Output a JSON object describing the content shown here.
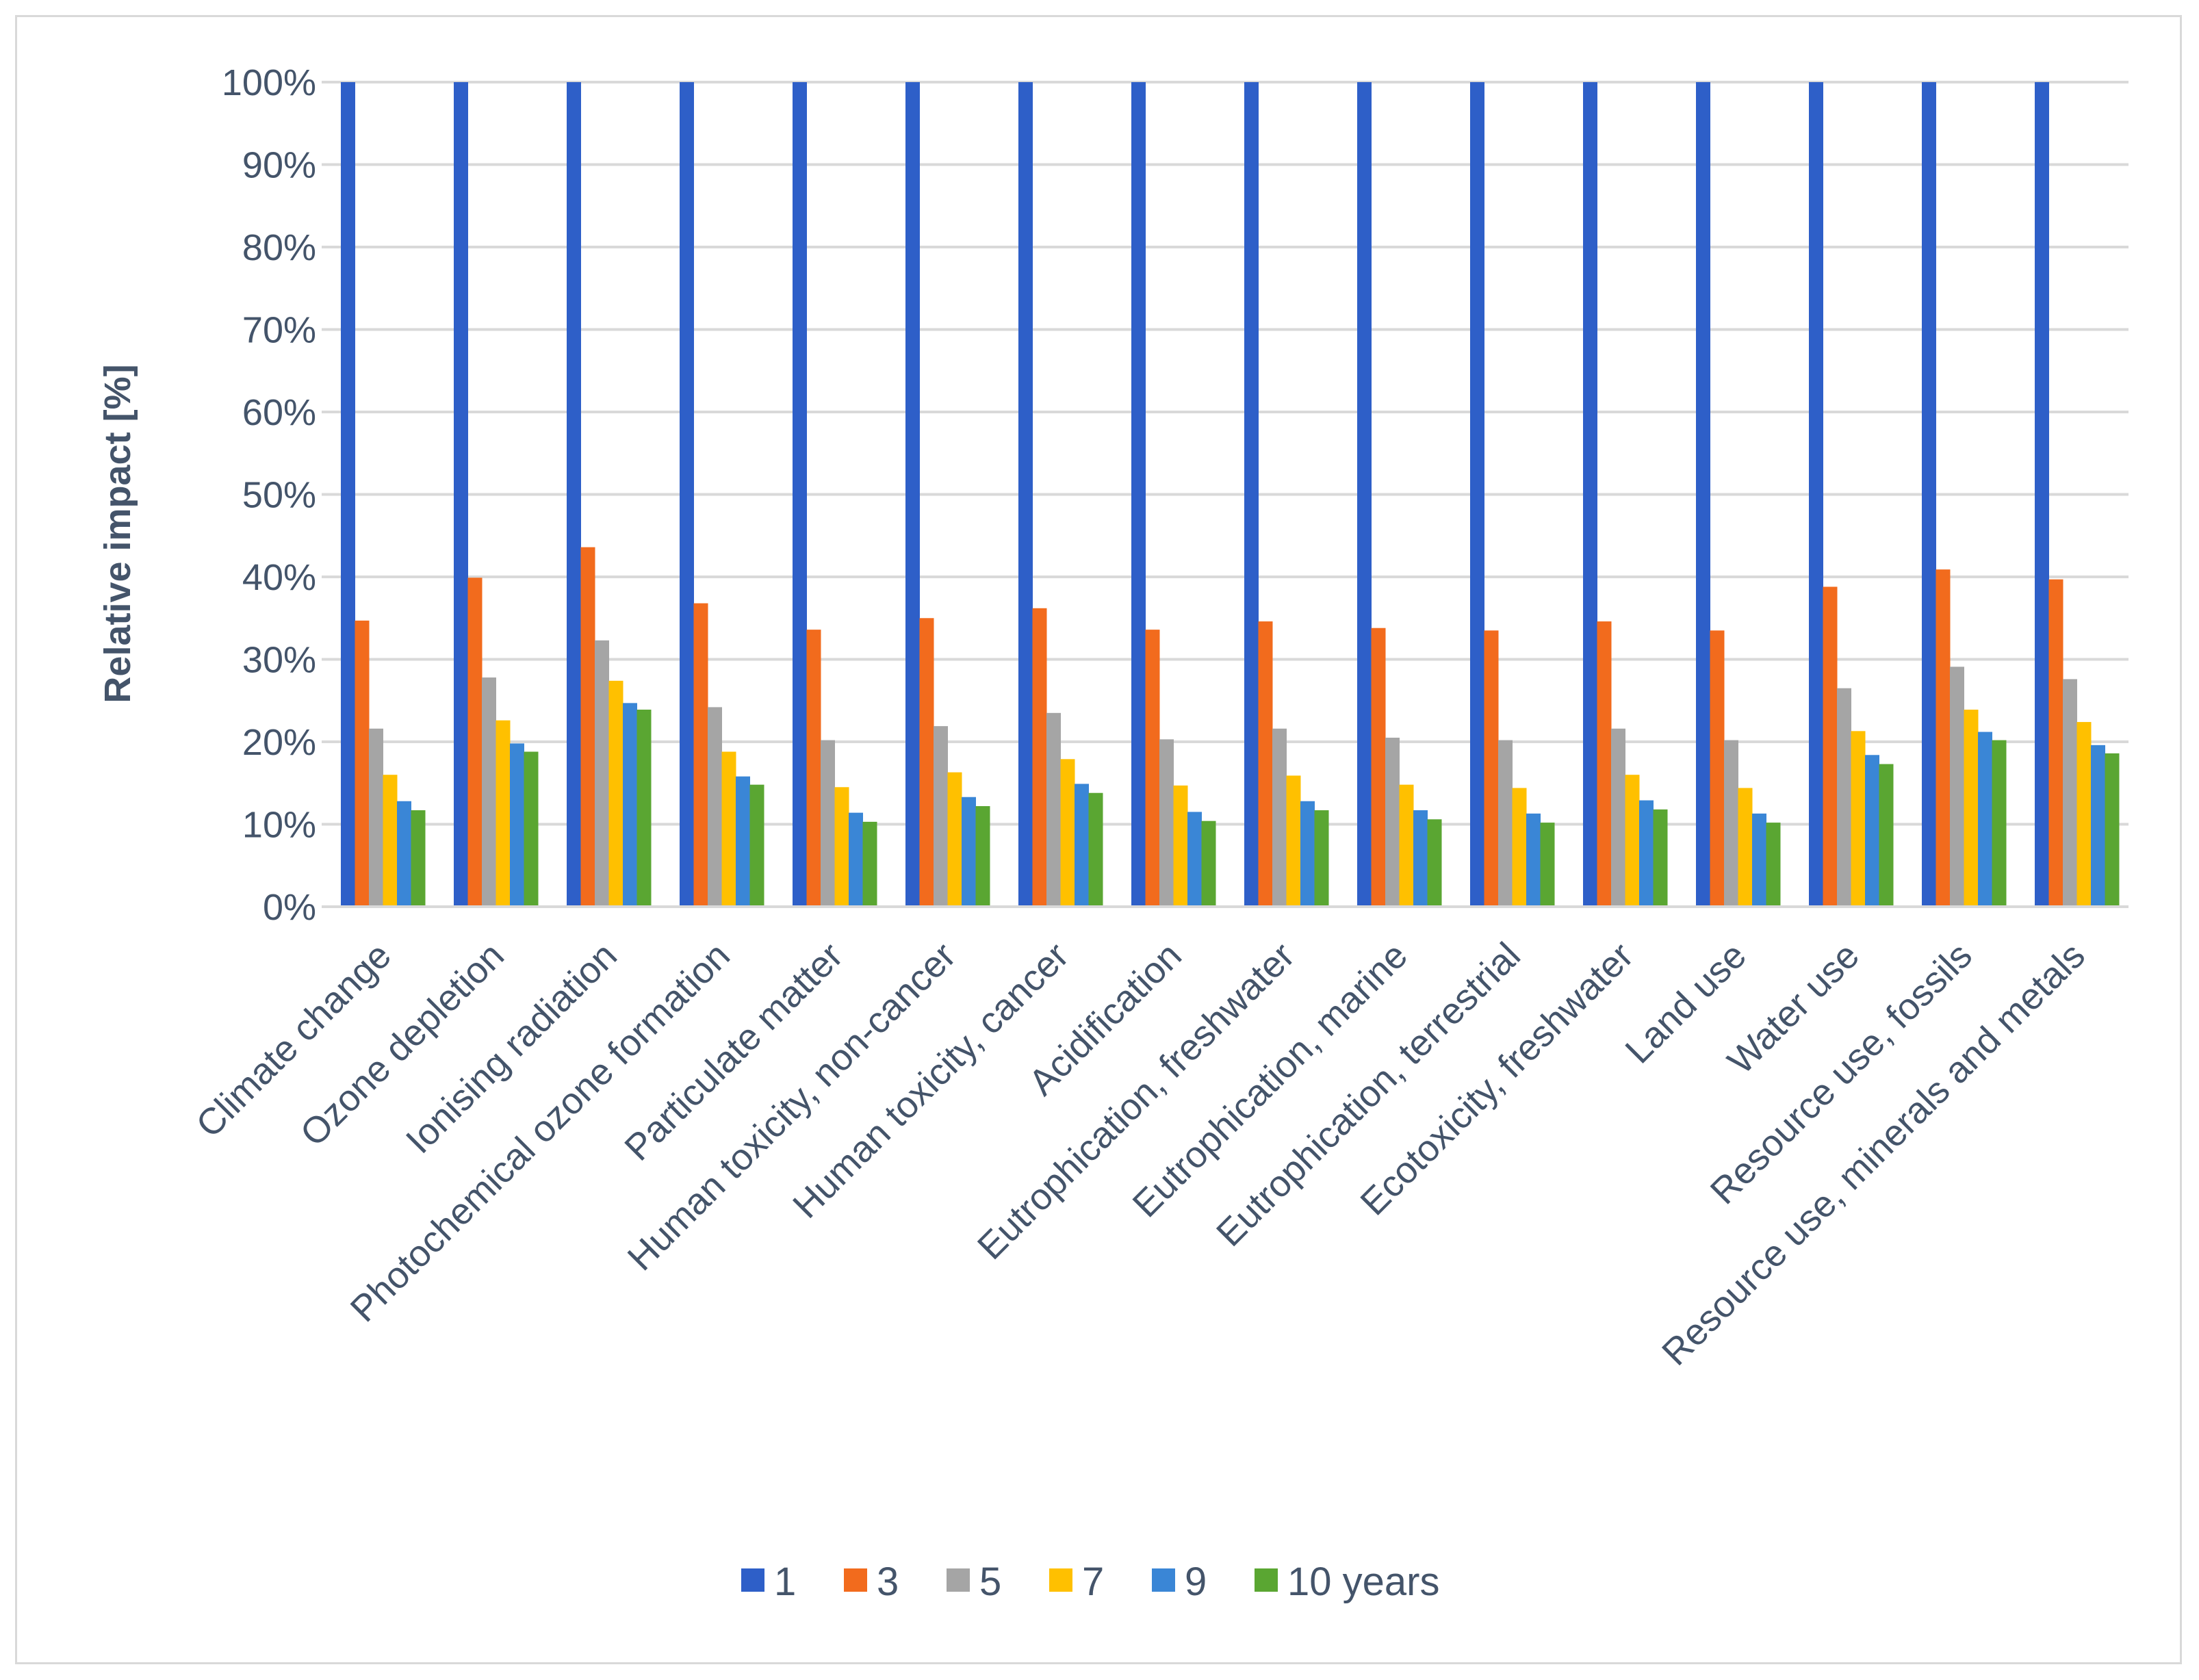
{
  "chart_data": {
    "type": "bar",
    "title": "",
    "xlabel": "",
    "ylabel": "Relative impact [%]",
    "ylim": [
      0,
      100
    ],
    "yticks": [
      "0%",
      "10%",
      "20%",
      "30%",
      "40%",
      "50%",
      "60%",
      "70%",
      "80%",
      "90%",
      "100%"
    ],
    "grid": true,
    "legend_position": "bottom",
    "categories": [
      "Climate change",
      "Ozone depletion",
      "Ionising radiation",
      "Photochemical ozone formation",
      "Particulate matter",
      "Human toxicity, non-cancer",
      "Human toxicity, cancer",
      "Acidification",
      "Eutrophication, freshwater",
      "Eutrophication, marine",
      "Eutrophication, terrestrial",
      "Ecotoxicity, freshwater",
      "Land use",
      "Water use",
      "Resource use, fossils",
      "Resource use, minerals and metals"
    ],
    "series": [
      {
        "name": "1",
        "color": "#2e5fc8",
        "values": [
          100,
          100,
          100,
          100,
          100,
          100,
          100,
          100,
          100,
          100,
          100,
          100,
          100,
          100,
          100,
          100
        ]
      },
      {
        "name": "3",
        "color": "#f26b1d",
        "values": [
          34.7,
          39.9,
          43.6,
          36.8,
          33.6,
          35.0,
          36.2,
          33.6,
          34.6,
          33.8,
          33.5,
          34.6,
          33.5,
          38.8,
          40.9,
          39.7
        ]
      },
      {
        "name": "5",
        "color": "#a5a5a5",
        "values": [
          21.6,
          27.8,
          32.3,
          24.2,
          20.2,
          21.9,
          23.5,
          20.3,
          21.6,
          20.5,
          20.2,
          21.6,
          20.2,
          26.5,
          29.1,
          27.6
        ]
      },
      {
        "name": "7",
        "color": "#ffc000",
        "values": [
          16.0,
          22.6,
          27.4,
          18.8,
          14.5,
          16.3,
          17.9,
          14.7,
          15.9,
          14.8,
          14.4,
          16.0,
          14.4,
          21.3,
          23.9,
          22.4
        ]
      },
      {
        "name": "9",
        "color": "#3a86d6",
        "values": [
          12.8,
          19.8,
          24.7,
          15.8,
          11.4,
          13.3,
          14.9,
          11.5,
          12.8,
          11.7,
          11.3,
          12.9,
          11.3,
          18.4,
          21.2,
          19.6
        ]
      },
      {
        "name": "10 years",
        "color": "#5aa632",
        "values": [
          11.7,
          18.8,
          23.9,
          14.8,
          10.3,
          12.2,
          13.8,
          10.4,
          11.7,
          10.6,
          10.2,
          11.8,
          10.2,
          17.3,
          20.2,
          18.6
        ]
      }
    ]
  }
}
